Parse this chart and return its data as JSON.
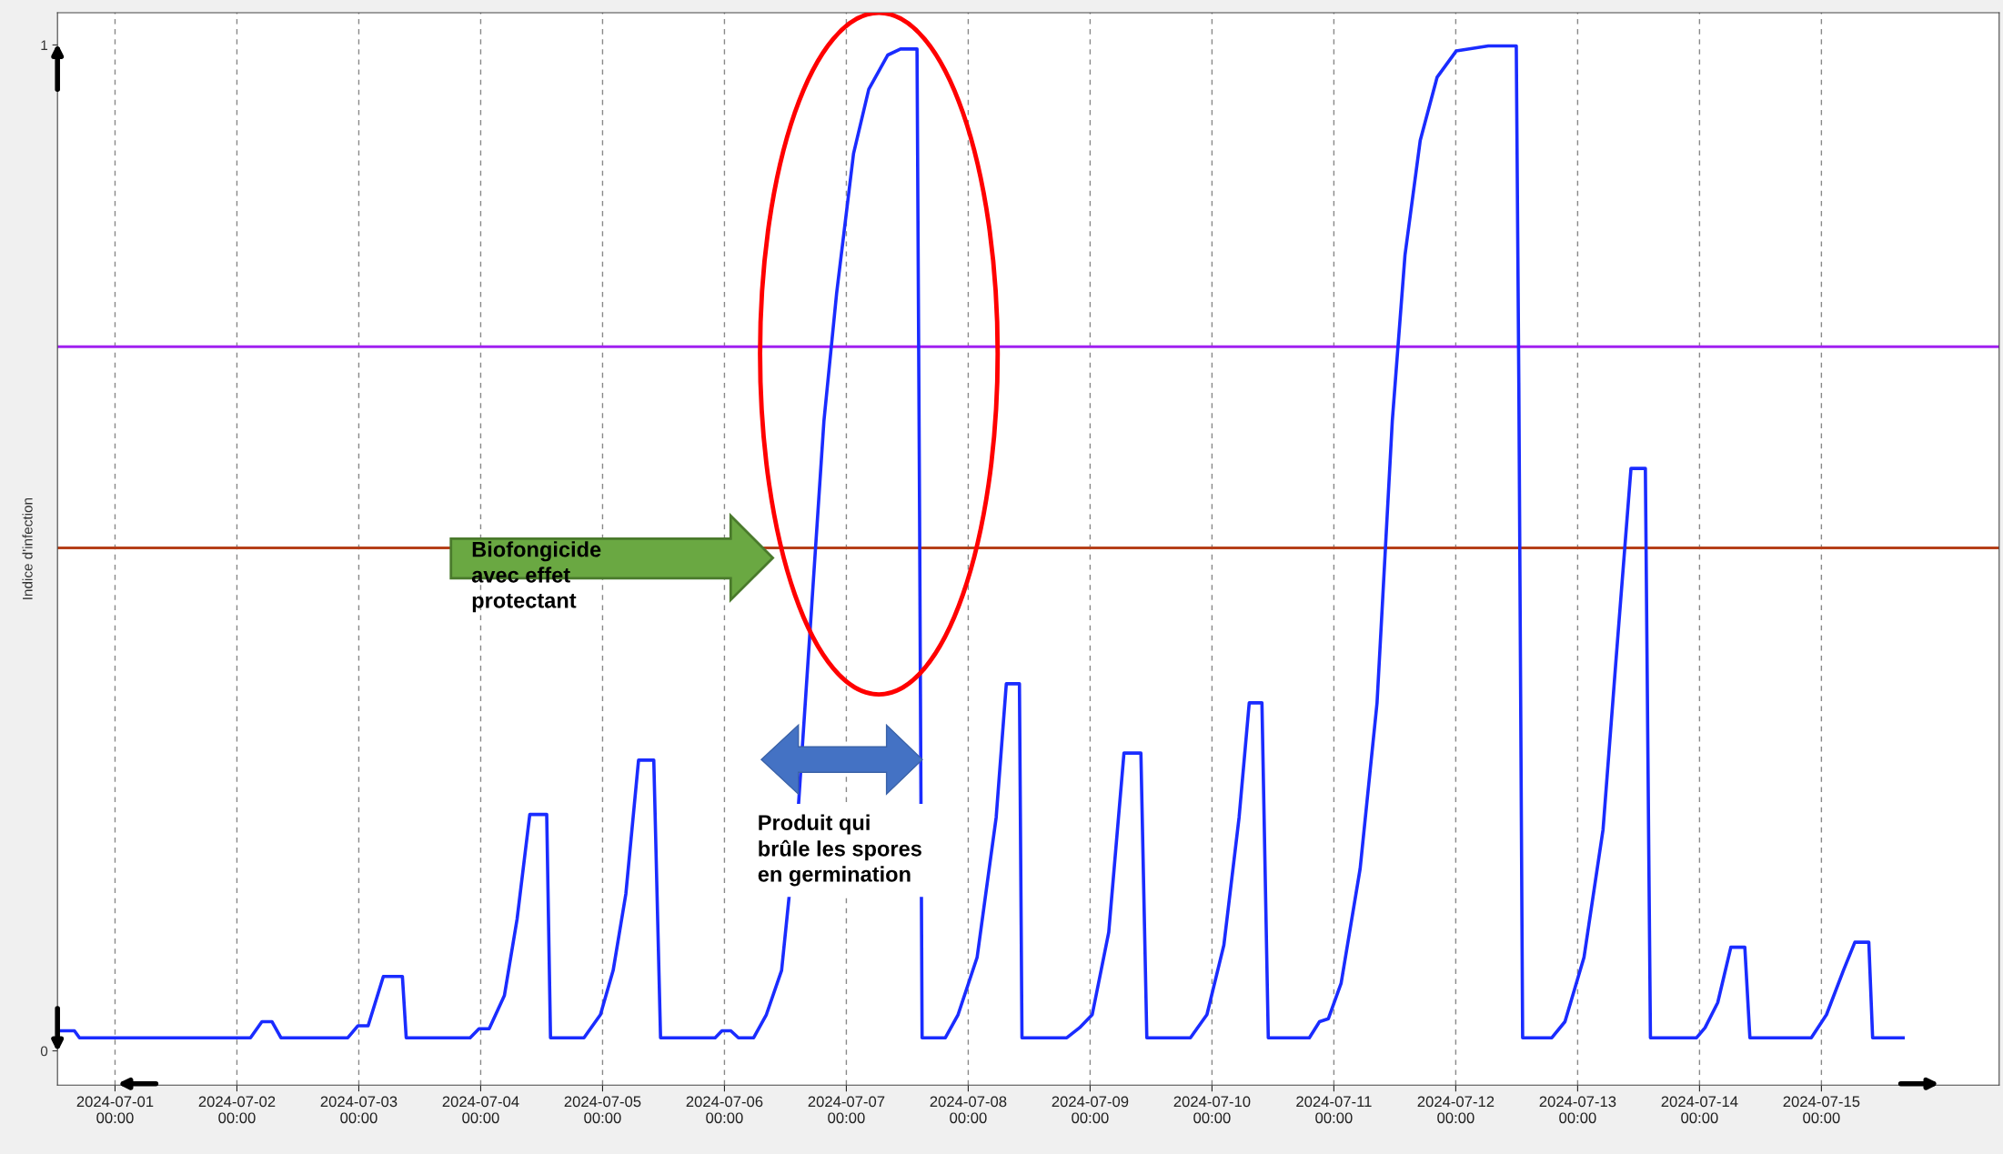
{
  "chart_data": {
    "type": "line",
    "ylabel": "Indice d'infection",
    "annotations": [
      "Biofongicide\navec effet\nprotectant",
      "Produit qui\nbrûle les spores\nen germination"
    ],
    "xlim": [
      "2024-06-30T12:40",
      "2024-07-16T11:00"
    ],
    "ylim": [
      -0.034,
      1.032
    ],
    "yticks": [
      0,
      1
    ],
    "xticks": [
      {
        "value": "2024-07-01T00:00",
        "label": "2024-07-01\n00:00"
      },
      {
        "value": "2024-07-02T00:00",
        "label": "2024-07-02\n00:00"
      },
      {
        "value": "2024-07-03T00:00",
        "label": "2024-07-03\n00:00"
      },
      {
        "value": "2024-07-04T00:00",
        "label": "2024-07-04\n00:00"
      },
      {
        "value": "2024-07-05T00:00",
        "label": "2024-07-05\n00:00"
      },
      {
        "value": "2024-07-06T00:00",
        "label": "2024-07-06\n00:00"
      },
      {
        "value": "2024-07-07T00:00",
        "label": "2024-07-07\n00:00"
      },
      {
        "value": "2024-07-08T00:00",
        "label": "2024-07-08\n00:00"
      },
      {
        "value": "2024-07-09T00:00",
        "label": "2024-07-09\n00:00"
      },
      {
        "value": "2024-07-10T00:00",
        "label": "2024-07-10\n00:00"
      },
      {
        "value": "2024-07-11T00:00",
        "label": "2024-07-11\n00:00"
      },
      {
        "value": "2024-07-12T00:00",
        "label": "2024-07-12\n00:00"
      },
      {
        "value": "2024-07-13T00:00",
        "label": "2024-07-13\n00:00"
      },
      {
        "value": "2024-07-14T00:00",
        "label": "2024-07-14\n00:00"
      },
      {
        "value": "2024-07-15T00:00",
        "label": "2024-07-15\n00:00"
      }
    ],
    "grid": "x",
    "legend": false,
    "marker": "none",
    "line_style": "solid",
    "ref_lines": [
      {
        "axis": "y",
        "value": 0.7,
        "color": "#a020f0"
      },
      {
        "axis": "y",
        "value": 0.5,
        "color": "#b5401a"
      }
    ],
    "series": [
      {
        "color": "#1a2cff",
        "x": [
          "2024-06-30T12:40",
          "2024-06-30T16:00",
          "2024-06-30T17:00",
          "2024-07-02T02:40",
          "2024-07-02T04:55",
          "2024-07-02T06:55",
          "2024-07-02T08:40",
          "2024-07-02T21:50",
          "2024-07-02T23:50",
          "2024-07-03T01:50",
          "2024-07-03T04:50",
          "2024-07-03T08:35",
          "2024-07-03T09:20",
          "2024-07-03T21:55",
          "2024-07-03T23:40",
          "2024-07-04T01:40",
          "2024-07-04T04:40",
          "2024-07-04T07:10",
          "2024-07-04T09:40",
          "2024-07-04T13:00",
          "2024-07-04T13:45",
          "2024-07-04T20:20",
          "2024-07-04T23:35",
          "2024-07-05T02:05",
          "2024-07-05T04:35",
          "2024-07-05T07:05",
          "2024-07-05T10:05",
          "2024-07-05T11:25",
          "2024-07-05T22:10",
          "2024-07-05T23:30",
          "2024-07-06T01:15",
          "2024-07-06T02:45",
          "2024-07-06T05:45",
          "2024-07-06T08:15",
          "2024-07-06T11:15",
          "2024-07-06T14:35",
          "2024-07-06T17:05",
          "2024-07-06T19:35",
          "2024-07-06T22:05",
          "2024-07-07T01:25",
          "2024-07-07T04:25",
          "2024-07-07T08:10",
          "2024-07-07T10:40",
          "2024-07-07T13:55",
          "2024-07-07T14:25",
          "2024-07-07T14:55",
          "2024-07-07T19:30",
          "2024-07-07T22:00",
          "2024-07-08T01:45",
          "2024-07-08T05:30",
          "2024-07-08T07:30",
          "2024-07-08T10:05",
          "2024-07-08T10:35",
          "2024-07-08T19:25",
          "2024-07-08T21:55",
          "2024-07-09T00:25",
          "2024-07-09T03:40",
          "2024-07-09T06:40",
          "2024-07-09T10:00",
          "2024-07-09T11:10",
          "2024-07-09T19:45",
          "2024-07-09T23:00",
          "2024-07-10T02:20",
          "2024-07-10T05:20",
          "2024-07-10T07:20",
          "2024-07-10T09:50",
          "2024-07-10T11:05",
          "2024-07-10T19:10",
          "2024-07-10T21:10",
          "2024-07-10T22:55",
          "2024-07-11T01:25",
          "2024-07-11T05:10",
          "2024-07-11T08:30",
          "2024-07-11T11:30",
          "2024-07-11T14:00",
          "2024-07-11T17:00",
          "2024-07-11T20:20",
          "2024-07-12T00:05",
          "2024-07-12T06:25",
          "2024-07-12T11:55",
          "2024-07-12T12:25",
          "2024-07-12T13:10",
          "2024-07-12T18:55",
          "2024-07-12T21:30",
          "2024-07-13T01:15",
          "2024-07-13T05:00",
          "2024-07-13T07:30",
          "2024-07-13T10:30",
          "2024-07-13T13:20",
          "2024-07-13T14:20",
          "2024-07-13T23:25",
          "2024-07-14T01:05",
          "2024-07-14T03:35",
          "2024-07-14T06:10",
          "2024-07-14T08:55",
          "2024-07-14T09:55",
          "2024-07-14T22:00",
          "2024-07-15T01:00",
          "2024-07-15T04:20",
          "2024-07-15T06:35",
          "2024-07-15T09:20",
          "2024-07-15T10:05",
          "2024-07-15T16:05"
        ],
        "values": [
          0.02,
          0.02,
          0.013,
          0.013,
          0.029,
          0.029,
          0.013,
          0.013,
          0.025,
          0.025,
          0.074,
          0.074,
          0.013,
          0.013,
          0.022,
          0.022,
          0.055,
          0.131,
          0.235,
          0.235,
          0.013,
          0.013,
          0.036,
          0.08,
          0.156,
          0.289,
          0.289,
          0.013,
          0.013,
          0.02,
          0.02,
          0.013,
          0.013,
          0.036,
          0.08,
          0.245,
          0.435,
          0.626,
          0.753,
          0.892,
          0.956,
          0.99,
          0.996,
          0.996,
          0.537,
          0.013,
          0.013,
          0.036,
          0.093,
          0.232,
          0.365,
          0.365,
          0.013,
          0.013,
          0.023,
          0.036,
          0.118,
          0.296,
          0.296,
          0.013,
          0.013,
          0.036,
          0.105,
          0.232,
          0.346,
          0.346,
          0.013,
          0.013,
          0.029,
          0.032,
          0.067,
          0.181,
          0.346,
          0.626,
          0.791,
          0.905,
          0.968,
          0.994,
          0.999,
          0.999,
          0.664,
          0.013,
          0.013,
          0.029,
          0.093,
          0.22,
          0.385,
          0.579,
          0.579,
          0.013,
          0.013,
          0.023,
          0.048,
          0.103,
          0.103,
          0.013,
          0.013,
          0.036,
          0.08,
          0.108,
          0.108,
          0.013,
          0.013
        ]
      }
    ]
  }
}
